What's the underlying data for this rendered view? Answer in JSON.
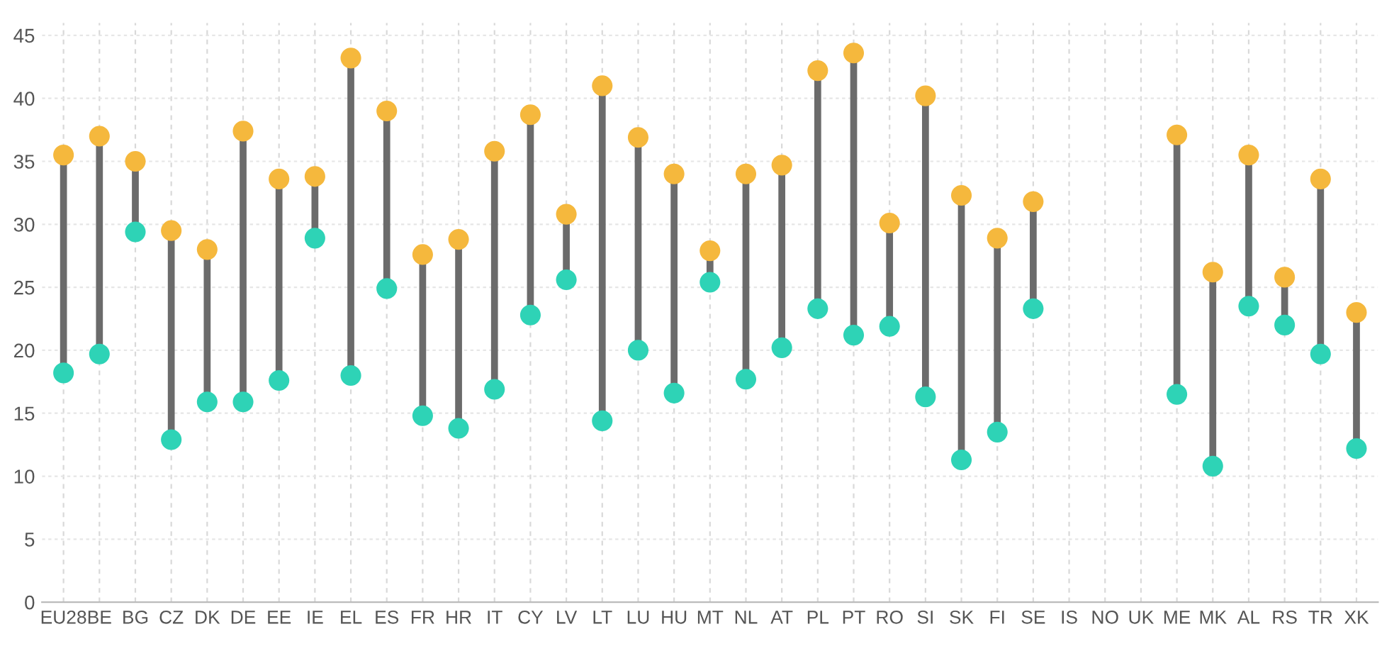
{
  "chart_data": {
    "type": "lollipop",
    "categories": [
      "EU28",
      "BE",
      "BG",
      "CZ",
      "DK",
      "DE",
      "EE",
      "IE",
      "EL",
      "ES",
      "FR",
      "HR",
      "IT",
      "CY",
      "LV",
      "LT",
      "LU",
      "HU",
      "MT",
      "NL",
      "AT",
      "PL",
      "PT",
      "RO",
      "SI",
      "SK",
      "FI",
      "SE",
      "IS",
      "NO",
      "UK",
      "ME",
      "MK",
      "AL",
      "RS",
      "TR",
      "XK"
    ],
    "series": [
      {
        "color": "#2ed3b6",
        "values": [
          18.2,
          19.7,
          29.4,
          12.9,
          15.9,
          15.9,
          17.6,
          28.9,
          18.0,
          24.9,
          14.8,
          13.8,
          16.9,
          22.8,
          25.6,
          14.4,
          20.0,
          16.6,
          25.4,
          17.7,
          20.2,
          23.3,
          21.2,
          21.9,
          16.3,
          11.3,
          13.5,
          23.3,
          null,
          null,
          null,
          16.5,
          10.8,
          23.5,
          22.0,
          19.7,
          12.2
        ]
      },
      {
        "color": "#f5b83d",
        "values": [
          35.5,
          37.0,
          35.0,
          29.5,
          28.0,
          37.4,
          33.6,
          33.8,
          43.2,
          39.0,
          27.6,
          28.8,
          35.8,
          38.7,
          30.8,
          41.0,
          36.9,
          34.0,
          27.9,
          34.0,
          34.7,
          42.2,
          43.6,
          30.1,
          40.2,
          32.3,
          28.9,
          31.8,
          null,
          null,
          null,
          37.1,
          26.2,
          35.5,
          25.8,
          33.6,
          23.0
        ]
      }
    ],
    "ylim": [
      0,
      46
    ],
    "yticks": [
      0,
      5,
      10,
      15,
      20,
      25,
      30,
      35,
      40,
      45
    ],
    "grid": true,
    "marker": "circle"
  }
}
